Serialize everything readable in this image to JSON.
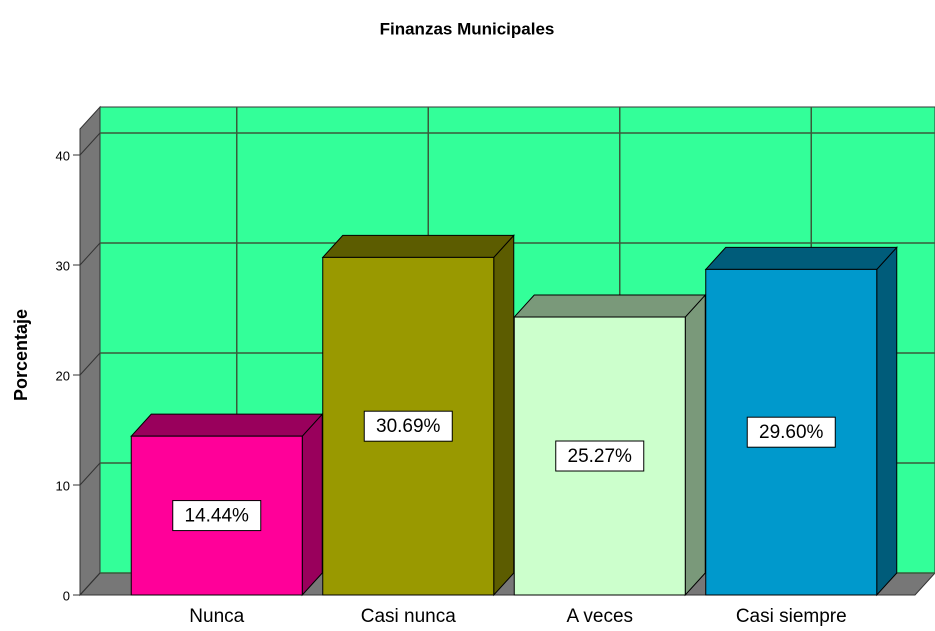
{
  "chart_data": {
    "type": "bar3d",
    "title": "Finanzas Municipales",
    "ylabel": "Porcentaje",
    "categories": [
      "Nunca",
      "Casi nunca",
      "A veces",
      "Casi siempre"
    ],
    "values": [
      14.44,
      30.69,
      25.27,
      29.6
    ],
    "value_labels": [
      "14.44%",
      "30.69%",
      "25.27%",
      "29.60%"
    ],
    "colors": [
      "#ff0099",
      "#999900",
      "#ccffcc",
      "#0099cc"
    ],
    "ylim": [
      0,
      42
    ],
    "yticks": [
      0,
      10,
      20,
      30,
      40
    ],
    "grid": true
  }
}
